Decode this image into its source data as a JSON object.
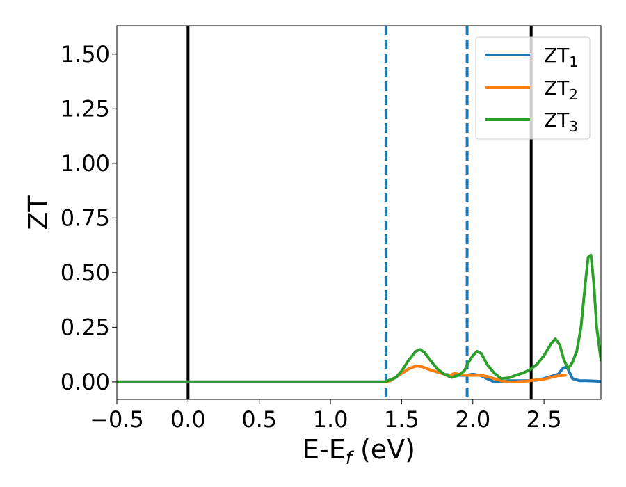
{
  "chart_data": {
    "type": "line",
    "title": "",
    "xlabel": "E-E",
    "xlabel_sub": "f",
    "xlabel_suffix": " (eV)",
    "ylabel": "ZT",
    "xlim": [
      -0.5,
      2.9
    ],
    "ylim": [
      -0.08,
      1.63
    ],
    "x_ticks": [
      -0.5,
      0.0,
      0.5,
      1.0,
      1.5,
      2.0,
      2.5
    ],
    "x_tick_labels": [
      "−0.5",
      "0.0",
      "0.5",
      "1.0",
      "1.5",
      "2.0",
      "2.5"
    ],
    "y_ticks": [
      0.0,
      0.25,
      0.5,
      0.75,
      1.0,
      1.25,
      1.5
    ],
    "y_tick_labels": [
      "0.00",
      "0.25",
      "0.50",
      "0.75",
      "1.00",
      "1.25",
      "1.50"
    ],
    "grid": false,
    "legend_position": "top-right",
    "vlines": [
      {
        "x": 0.0,
        "style": "solid",
        "color": "#000000"
      },
      {
        "x": 1.39,
        "style": "dashed",
        "color": "#1f77b4"
      },
      {
        "x": 1.96,
        "style": "dashed",
        "color": "#1f77b4"
      },
      {
        "x": 2.41,
        "style": "solid",
        "color": "#000000"
      }
    ],
    "series": [
      {
        "name": "ZT",
        "name_sub": "1",
        "color": "#1f77b4",
        "x": [
          -0.5,
          1.38,
          1.42,
          1.48,
          1.55,
          1.6,
          1.64,
          1.7,
          1.8,
          1.85,
          1.9,
          1.95,
          2.0,
          2.05,
          2.1,
          2.15,
          2.2,
          2.25,
          2.3,
          2.35,
          2.4,
          2.45,
          2.5,
          2.55,
          2.6,
          2.63,
          2.66,
          2.7,
          2.75,
          2.8,
          2.85,
          2.9
        ],
        "y": [
          0.0,
          0.0,
          0.005,
          0.03,
          0.06,
          0.072,
          0.07,
          0.055,
          0.035,
          0.03,
          0.03,
          0.03,
          0.035,
          0.03,
          0.015,
          0.0,
          0.0,
          0.005,
          0.005,
          0.005,
          0.006,
          0.008,
          0.015,
          0.025,
          0.035,
          0.06,
          0.07,
          0.015,
          0.005,
          0.005,
          0.004,
          0.002
        ]
      },
      {
        "name": "ZT",
        "name_sub": "2",
        "color": "#ff7f0e",
        "x": [
          -0.5,
          1.38,
          1.42,
          1.48,
          1.55,
          1.6,
          1.64,
          1.7,
          1.75,
          1.8,
          1.84,
          1.87,
          1.9,
          1.95,
          2.0,
          2.05,
          2.1,
          2.15,
          2.2,
          2.25,
          2.3,
          2.35,
          2.4,
          2.45,
          2.5,
          2.55,
          2.6,
          2.65
        ],
        "y": [
          0.0,
          0.0,
          0.005,
          0.03,
          0.06,
          0.072,
          0.07,
          0.055,
          0.045,
          0.035,
          0.028,
          0.04,
          0.035,
          0.03,
          0.03,
          0.03,
          0.025,
          0.015,
          0.005,
          0.0,
          0.0,
          0.002,
          0.005,
          0.01,
          0.012,
          0.02,
          0.028,
          0.03
        ]
      },
      {
        "name": "ZT",
        "name_sub": "3",
        "color": "#2ca02c",
        "x": [
          -0.5,
          1.38,
          1.42,
          1.46,
          1.5,
          1.55,
          1.6,
          1.63,
          1.66,
          1.7,
          1.75,
          1.8,
          1.85,
          1.9,
          1.94,
          1.97,
          2.0,
          2.03,
          2.06,
          2.1,
          2.15,
          2.2,
          2.25,
          2.3,
          2.35,
          2.4,
          2.45,
          2.5,
          2.55,
          2.58,
          2.61,
          2.64,
          2.67,
          2.7,
          2.73,
          2.76,
          2.79,
          2.81,
          2.83,
          2.85,
          2.87,
          2.9
        ],
        "y": [
          0.0,
          0.0,
          0.01,
          0.02,
          0.05,
          0.1,
          0.14,
          0.148,
          0.135,
          0.1,
          0.06,
          0.035,
          0.02,
          0.03,
          0.05,
          0.09,
          0.12,
          0.14,
          0.13,
          0.08,
          0.04,
          0.015,
          0.018,
          0.03,
          0.04,
          0.055,
          0.08,
          0.12,
          0.175,
          0.197,
          0.17,
          0.1,
          0.06,
          0.09,
          0.14,
          0.25,
          0.45,
          0.57,
          0.58,
          0.45,
          0.25,
          0.1
        ]
      }
    ]
  }
}
